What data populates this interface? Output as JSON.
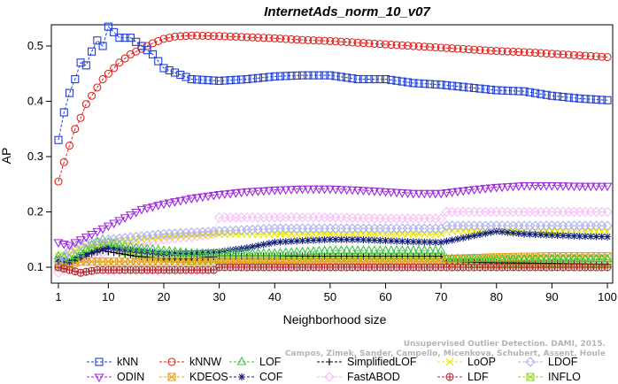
{
  "chart_data": {
    "type": "line",
    "title": "InternetAds_norm_10_v07",
    "xlabel": "Neighborhood size",
    "ylabel": "AP",
    "xlim": [
      1,
      100
    ],
    "ylim": [
      0.07,
      0.545
    ],
    "xticks": [
      1,
      10,
      20,
      30,
      40,
      50,
      60,
      70,
      80,
      90,
      100
    ],
    "yticks": [
      0.1,
      0.2,
      0.3,
      0.4,
      0.5
    ],
    "grid": false,
    "legend_position": "bottom",
    "watermark": [
      "Campos, Zimek, Sander, Campello, Micenkova, Schubert, Assent, Houle",
      "Unsupervised Outlier Detection. DAMI, 2015."
    ],
    "series": [
      {
        "name": "kNN",
        "color": "#1f3fd6",
        "marker": "square",
        "x": [
          1,
          2,
          3,
          4,
          5,
          6,
          7,
          8,
          9,
          10,
          12,
          14,
          16,
          18,
          20,
          25,
          30,
          35,
          40,
          45,
          50,
          55,
          60,
          65,
          70,
          75,
          80,
          85,
          90,
          95,
          100
        ],
        "y": [
          0.33,
          0.38,
          0.415,
          0.44,
          0.47,
          0.465,
          0.49,
          0.51,
          0.5,
          0.535,
          0.515,
          0.515,
          0.5,
          0.485,
          0.46,
          0.44,
          0.437,
          0.44,
          0.445,
          0.447,
          0.447,
          0.44,
          0.44,
          0.433,
          0.43,
          0.425,
          0.42,
          0.418,
          0.41,
          0.405,
          0.402
        ]
      },
      {
        "name": "kNNW",
        "color": "#e0201b",
        "marker": "circle",
        "x": [
          1,
          2,
          3,
          4,
          5,
          6,
          7,
          8,
          9,
          10,
          12,
          14,
          16,
          18,
          20,
          22,
          25,
          30,
          35,
          40,
          45,
          50,
          55,
          60,
          65,
          70,
          75,
          80,
          85,
          90,
          95,
          100
        ],
        "y": [
          0.255,
          0.29,
          0.32,
          0.35,
          0.37,
          0.395,
          0.41,
          0.425,
          0.44,
          0.45,
          0.47,
          0.485,
          0.495,
          0.505,
          0.513,
          0.517,
          0.519,
          0.518,
          0.516,
          0.514,
          0.511,
          0.509,
          0.506,
          0.503,
          0.5,
          0.497,
          0.494,
          0.491,
          0.489,
          0.486,
          0.483,
          0.48
        ]
      },
      {
        "name": "LOF",
        "color": "#3ec63e",
        "marker": "triangle-up",
        "x": [
          1,
          3,
          5,
          7,
          9,
          10,
          12,
          15,
          20,
          25,
          30,
          40,
          50,
          60,
          70,
          71,
          80,
          90,
          100
        ],
        "y": [
          0.12,
          0.115,
          0.125,
          0.14,
          0.15,
          0.145,
          0.14,
          0.135,
          0.13,
          0.125,
          0.125,
          0.125,
          0.13,
          0.13,
          0.13,
          0.115,
          0.115,
          0.115,
          0.115
        ]
      },
      {
        "name": "SimplifiedLOF",
        "color": "#000000",
        "marker": "plus",
        "x": [
          1,
          3,
          5,
          7,
          9,
          10,
          12,
          15,
          20,
          25,
          30,
          40,
          50,
          60,
          70,
          71,
          80,
          90,
          100
        ],
        "y": [
          0.11,
          0.11,
          0.115,
          0.125,
          0.13,
          0.128,
          0.125,
          0.12,
          0.115,
          0.115,
          0.12,
          0.12,
          0.12,
          0.12,
          0.12,
          0.11,
          0.108,
          0.107,
          0.105
        ]
      },
      {
        "name": "LoOP",
        "color": "#e8e800",
        "marker": "x",
        "x": [
          1,
          3,
          5,
          7,
          10,
          15,
          20,
          30,
          40,
          50,
          60,
          70,
          71,
          80,
          90,
          100
        ],
        "y": [
          0.12,
          0.125,
          0.135,
          0.14,
          0.145,
          0.15,
          0.155,
          0.16,
          0.16,
          0.16,
          0.16,
          0.16,
          0.165,
          0.165,
          0.165,
          0.165
        ]
      },
      {
        "name": "LDOF",
        "color": "#aeb0f0",
        "marker": "diamond",
        "x": [
          1,
          3,
          5,
          7,
          10,
          15,
          20,
          30,
          40,
          50,
          60,
          70,
          71,
          80,
          90,
          100
        ],
        "y": [
          0.11,
          0.13,
          0.14,
          0.145,
          0.15,
          0.155,
          0.16,
          0.165,
          0.17,
          0.17,
          0.17,
          0.17,
          0.175,
          0.175,
          0.175,
          0.175
        ]
      },
      {
        "name": "ODIN",
        "color": "#9d27d8",
        "marker": "triangle-down",
        "x": [
          1,
          3,
          5,
          7,
          10,
          13,
          16,
          20,
          25,
          30,
          35,
          40,
          45,
          50,
          55,
          60,
          65,
          70,
          75,
          80,
          85,
          90,
          95,
          100
        ],
        "y": [
          0.145,
          0.14,
          0.15,
          0.16,
          0.175,
          0.19,
          0.205,
          0.215,
          0.225,
          0.232,
          0.237,
          0.24,
          0.242,
          0.242,
          0.24,
          0.237,
          0.234,
          0.234,
          0.24,
          0.245,
          0.248,
          0.248,
          0.247,
          0.247
        ]
      },
      {
        "name": "KDEOS",
        "color": "#e8a21a",
        "marker": "square-x",
        "x": [
          1,
          5,
          10,
          15,
          20,
          30,
          40,
          50,
          60,
          70,
          71,
          80,
          90,
          100
        ],
        "y": [
          0.105,
          0.11,
          0.11,
          0.11,
          0.11,
          0.11,
          0.11,
          0.11,
          0.11,
          0.11,
          0.115,
          0.118,
          0.12,
          0.12
        ]
      },
      {
        "name": "COF",
        "color": "#101d7a",
        "marker": "asterisk",
        "x": [
          1,
          3,
          5,
          8,
          10,
          15,
          20,
          25,
          30,
          35,
          40,
          45,
          50,
          55,
          60,
          65,
          70,
          75,
          80,
          85,
          90,
          95,
          100
        ],
        "y": [
          0.115,
          0.11,
          0.12,
          0.13,
          0.135,
          0.13,
          0.125,
          0.125,
          0.128,
          0.135,
          0.145,
          0.148,
          0.15,
          0.15,
          0.148,
          0.146,
          0.145,
          0.155,
          0.165,
          0.16,
          0.158,
          0.156,
          0.155
        ]
      },
      {
        "name": "FastABOD",
        "color": "#f7bdf7",
        "marker": "diamond",
        "x": [
          1,
          3,
          5,
          10,
          15,
          20,
          25,
          29,
          30,
          35,
          40,
          50,
          60,
          70,
          71,
          75,
          80,
          90,
          100
        ],
        "y": [
          0.09,
          0.1,
          0.11,
          0.13,
          0.14,
          0.15,
          0.155,
          0.16,
          0.19,
          0.19,
          0.19,
          0.19,
          0.188,
          0.188,
          0.2,
          0.2,
          0.2,
          0.2,
          0.2
        ]
      },
      {
        "name": "LDF",
        "color": "#b32a35",
        "marker": "circle-plus",
        "x": [
          1,
          3,
          5,
          8,
          10,
          15,
          20,
          25,
          29,
          30,
          40,
          50,
          60,
          70,
          75,
          80,
          90,
          100
        ],
        "y": [
          0.1,
          0.095,
          0.09,
          0.095,
          0.095,
          0.095,
          0.095,
          0.095,
          0.095,
          0.1,
          0.1,
          0.1,
          0.1,
          0.1,
          0.1,
          0.1,
          0.1,
          0.1
        ]
      },
      {
        "name": "INFLO",
        "color": "#98d62a",
        "marker": "square-x",
        "x": [
          1,
          3,
          5,
          7,
          9,
          10,
          12,
          15,
          20,
          25,
          30,
          40,
          50,
          60,
          70,
          71,
          80,
          90,
          100
        ],
        "y": [
          0.1,
          0.105,
          0.12,
          0.13,
          0.14,
          0.138,
          0.13,
          0.125,
          0.118,
          0.112,
          0.115,
          0.115,
          0.117,
          0.117,
          0.117,
          0.107,
          0.105,
          0.105,
          0.105
        ]
      }
    ]
  }
}
